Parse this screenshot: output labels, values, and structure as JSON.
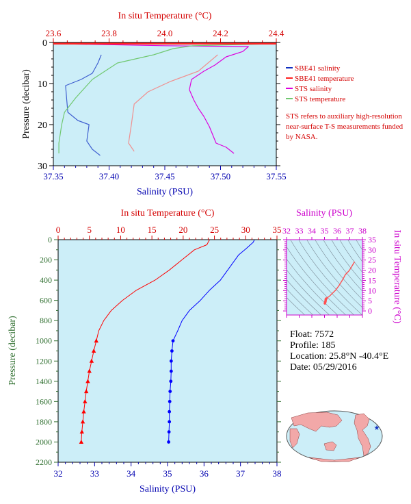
{
  "chart_data": [
    {
      "type": "line",
      "xlabel_top": "In situ Temperature (°C)",
      "xlabel_bottom": "Salinity (PSU)",
      "ylabel": "Pressure (decibar)",
      "temp_ticks": [
        "23.6",
        "23.8",
        "24.0",
        "24.2",
        "24.4"
      ],
      "sal_ticks": [
        "37.35",
        "37.40",
        "37.45",
        "37.50",
        "37.55"
      ],
      "p_ticks": [
        "0",
        "10",
        "20",
        "30"
      ],
      "xlim_temp": [
        23.6,
        24.4
      ],
      "xlim_sal": [
        37.35,
        37.55
      ],
      "ylim": [
        30,
        0
      ],
      "legend": {
        "placement": "right",
        "entries": [
          {
            "name": "SBE41 salinity",
            "color": "#1030c0"
          },
          {
            "name": "SBE41 temperature",
            "color": "#ff2020"
          },
          {
            "name": "STS salinity",
            "color": "#dd00dd"
          },
          {
            "name": "STS temperature",
            "color": "#70c870"
          }
        ]
      },
      "note": "STS refers to auxiliary high-resolution near-surface T-S measurements funded by NASA.",
      "series": [
        {
          "name": "SBE41 salinity",
          "axis": "sal",
          "color": "#4060d0",
          "points": [
            [
              37.393,
              3
            ],
            [
              37.39,
              5
            ],
            [
              37.385,
              7.5
            ],
            [
              37.375,
              9
            ],
            [
              37.361,
              10.5
            ],
            [
              37.362,
              14
            ],
            [
              37.363,
              17
            ],
            [
              37.372,
              19
            ],
            [
              37.382,
              20
            ],
            [
              37.38,
              24
            ],
            [
              37.385,
              26
            ],
            [
              37.392,
              27.5
            ]
          ]
        },
        {
          "name": "SBE41 temperature",
          "axis": "temp",
          "color": "#f09090",
          "points": [
            [
              24.19,
              3
            ],
            [
              24.12,
              7
            ],
            [
              24.02,
              9.5
            ],
            [
              23.94,
              12
            ],
            [
              23.89,
              15
            ],
            [
              23.88,
              20
            ],
            [
              23.87,
              24.5
            ],
            [
              23.89,
              26.5
            ]
          ]
        },
        {
          "name": "STS salinity",
          "axis": "sal",
          "color": "#dd00dd",
          "points": [
            [
              37.35,
              0.3
            ],
            [
              37.45,
              0.8
            ],
            [
              37.525,
              1
            ],
            [
              37.52,
              2.2
            ],
            [
              37.505,
              3.5
            ],
            [
              37.495,
              5.5
            ],
            [
              37.485,
              7
            ],
            [
              37.474,
              9
            ],
            [
              37.472,
              11.5
            ],
            [
              37.476,
              14
            ],
            [
              37.48,
              16
            ],
            [
              37.485,
              18
            ],
            [
              37.49,
              20.5
            ],
            [
              37.493,
              22.5
            ],
            [
              37.496,
              24.5
            ],
            [
              37.505,
              25.5
            ],
            [
              37.512,
              27
            ]
          ]
        },
        {
          "name": "STS temperature",
          "axis": "temp",
          "color": "#70c870",
          "points": [
            [
              24.4,
              0.3
            ],
            [
              24.1,
              0.8
            ],
            [
              24.03,
              1.5
            ],
            [
              23.96,
              3
            ],
            [
              23.83,
              5
            ],
            [
              23.74,
              9
            ],
            [
              23.68,
              13.5
            ],
            [
              23.64,
              17
            ],
            [
              23.63,
              20
            ],
            [
              23.62,
              24.5
            ],
            [
              23.62,
              27
            ]
          ]
        },
        {
          "name": "SBE41 temperature surface",
          "axis": "temp",
          "color": "#ff2020",
          "points": [
            [
              23.6,
              0.3
            ],
            [
              24.4,
              0.3
            ]
          ]
        }
      ]
    },
    {
      "type": "line",
      "xlabel_top": "In situ Temperature (°C)",
      "xlabel_bottom": "Salinity (PSU)",
      "ylabel": "Pressure (decibar)",
      "temp_ticks": [
        "0",
        "5",
        "10",
        "15",
        "20",
        "25",
        "30",
        "35"
      ],
      "sal_ticks": [
        "32",
        "33",
        "34",
        "35",
        "36",
        "37",
        "38"
      ],
      "p_ticks": [
        "0",
        "200",
        "400",
        "600",
        "800",
        "1000",
        "1200",
        "1400",
        "1600",
        "1800",
        "2000",
        "2200"
      ],
      "xlim_temp": [
        0,
        35
      ],
      "xlim_sal": [
        32,
        38
      ],
      "ylim": [
        2200,
        0
      ],
      "series": [
        {
          "name": "temperature",
          "axis": "temp",
          "color": "#ff0000",
          "points": [
            [
              24.2,
              3
            ],
            [
              24.0,
              25
            ],
            [
              23.8,
              50
            ],
            [
              21.8,
              100
            ],
            [
              19.8,
              200
            ],
            [
              17.8,
              300
            ],
            [
              15.5,
              400
            ],
            [
              12.5,
              500
            ],
            [
              10.3,
              600
            ],
            [
              8.5,
              700
            ],
            [
              7.3,
              800
            ],
            [
              6.5,
              900
            ],
            [
              6.1,
              1000
            ],
            [
              5.7,
              1100
            ],
            [
              5.35,
              1200
            ],
            [
              5.0,
              1300
            ],
            [
              4.75,
              1400
            ],
            [
              4.5,
              1500
            ],
            [
              4.3,
              1600
            ],
            [
              4.1,
              1700
            ],
            [
              3.95,
              1800
            ],
            [
              3.8,
              1900
            ],
            [
              3.7,
              2000
            ]
          ],
          "markers_from": 1000
        },
        {
          "name": "salinity",
          "axis": "sal",
          "color": "#0000ff",
          "points": [
            [
              37.38,
              3
            ],
            [
              37.35,
              25
            ],
            [
              37.15,
              90
            ],
            [
              36.95,
              150
            ],
            [
              36.65,
              300
            ],
            [
              36.45,
              400
            ],
            [
              36.15,
              500
            ],
            [
              35.9,
              600
            ],
            [
              35.6,
              700
            ],
            [
              35.4,
              800
            ],
            [
              35.28,
              900
            ],
            [
              35.15,
              1000
            ],
            [
              35.12,
              1100
            ],
            [
              35.1,
              1200
            ],
            [
              35.1,
              1300
            ],
            [
              35.09,
              1400
            ],
            [
              35.07,
              1500
            ],
            [
              35.06,
              1600
            ],
            [
              35.05,
              1700
            ],
            [
              35.05,
              1800
            ],
            [
              35.04,
              1900
            ],
            [
              35.03,
              2000
            ]
          ],
          "markers_from": 1000
        }
      ]
    },
    {
      "type": "scatter",
      "xlabel_top": "Salinity (PSU)",
      "ylabel_right": "In situ Temperature (°C)",
      "x_ticks": [
        "32",
        "33",
        "34",
        "35",
        "36",
        "37",
        "38"
      ],
      "y_ticks": [
        "0",
        "5",
        "10",
        "15",
        "20",
        "25",
        "30",
        "35"
      ],
      "xlim": [
        32,
        38
      ],
      "ylim": [
        -2,
        35
      ],
      "series": [
        {
          "name": "ts-curve",
          "color": "#ff5050",
          "points": [
            [
              35.03,
              3.7
            ],
            [
              35.05,
              4.1
            ],
            [
              35.07,
              4.5
            ],
            [
              35.09,
              5.0
            ],
            [
              35.1,
              5.7
            ],
            [
              35.15,
              6.1
            ],
            [
              35.4,
              7.3
            ],
            [
              35.6,
              8.5
            ],
            [
              35.9,
              10.3
            ],
            [
              36.15,
              12.5
            ],
            [
              36.45,
              15.5
            ],
            [
              36.65,
              17.8
            ],
            [
              36.95,
              19.8
            ],
            [
              37.15,
              21.8
            ],
            [
              37.38,
              24.2
            ]
          ]
        }
      ]
    }
  ],
  "info": {
    "float": "Float:  7572",
    "profile": "Profile:  185",
    "location": "Location:  25.8°N  -40.4°E",
    "date": "Date:  05/29/2016"
  }
}
